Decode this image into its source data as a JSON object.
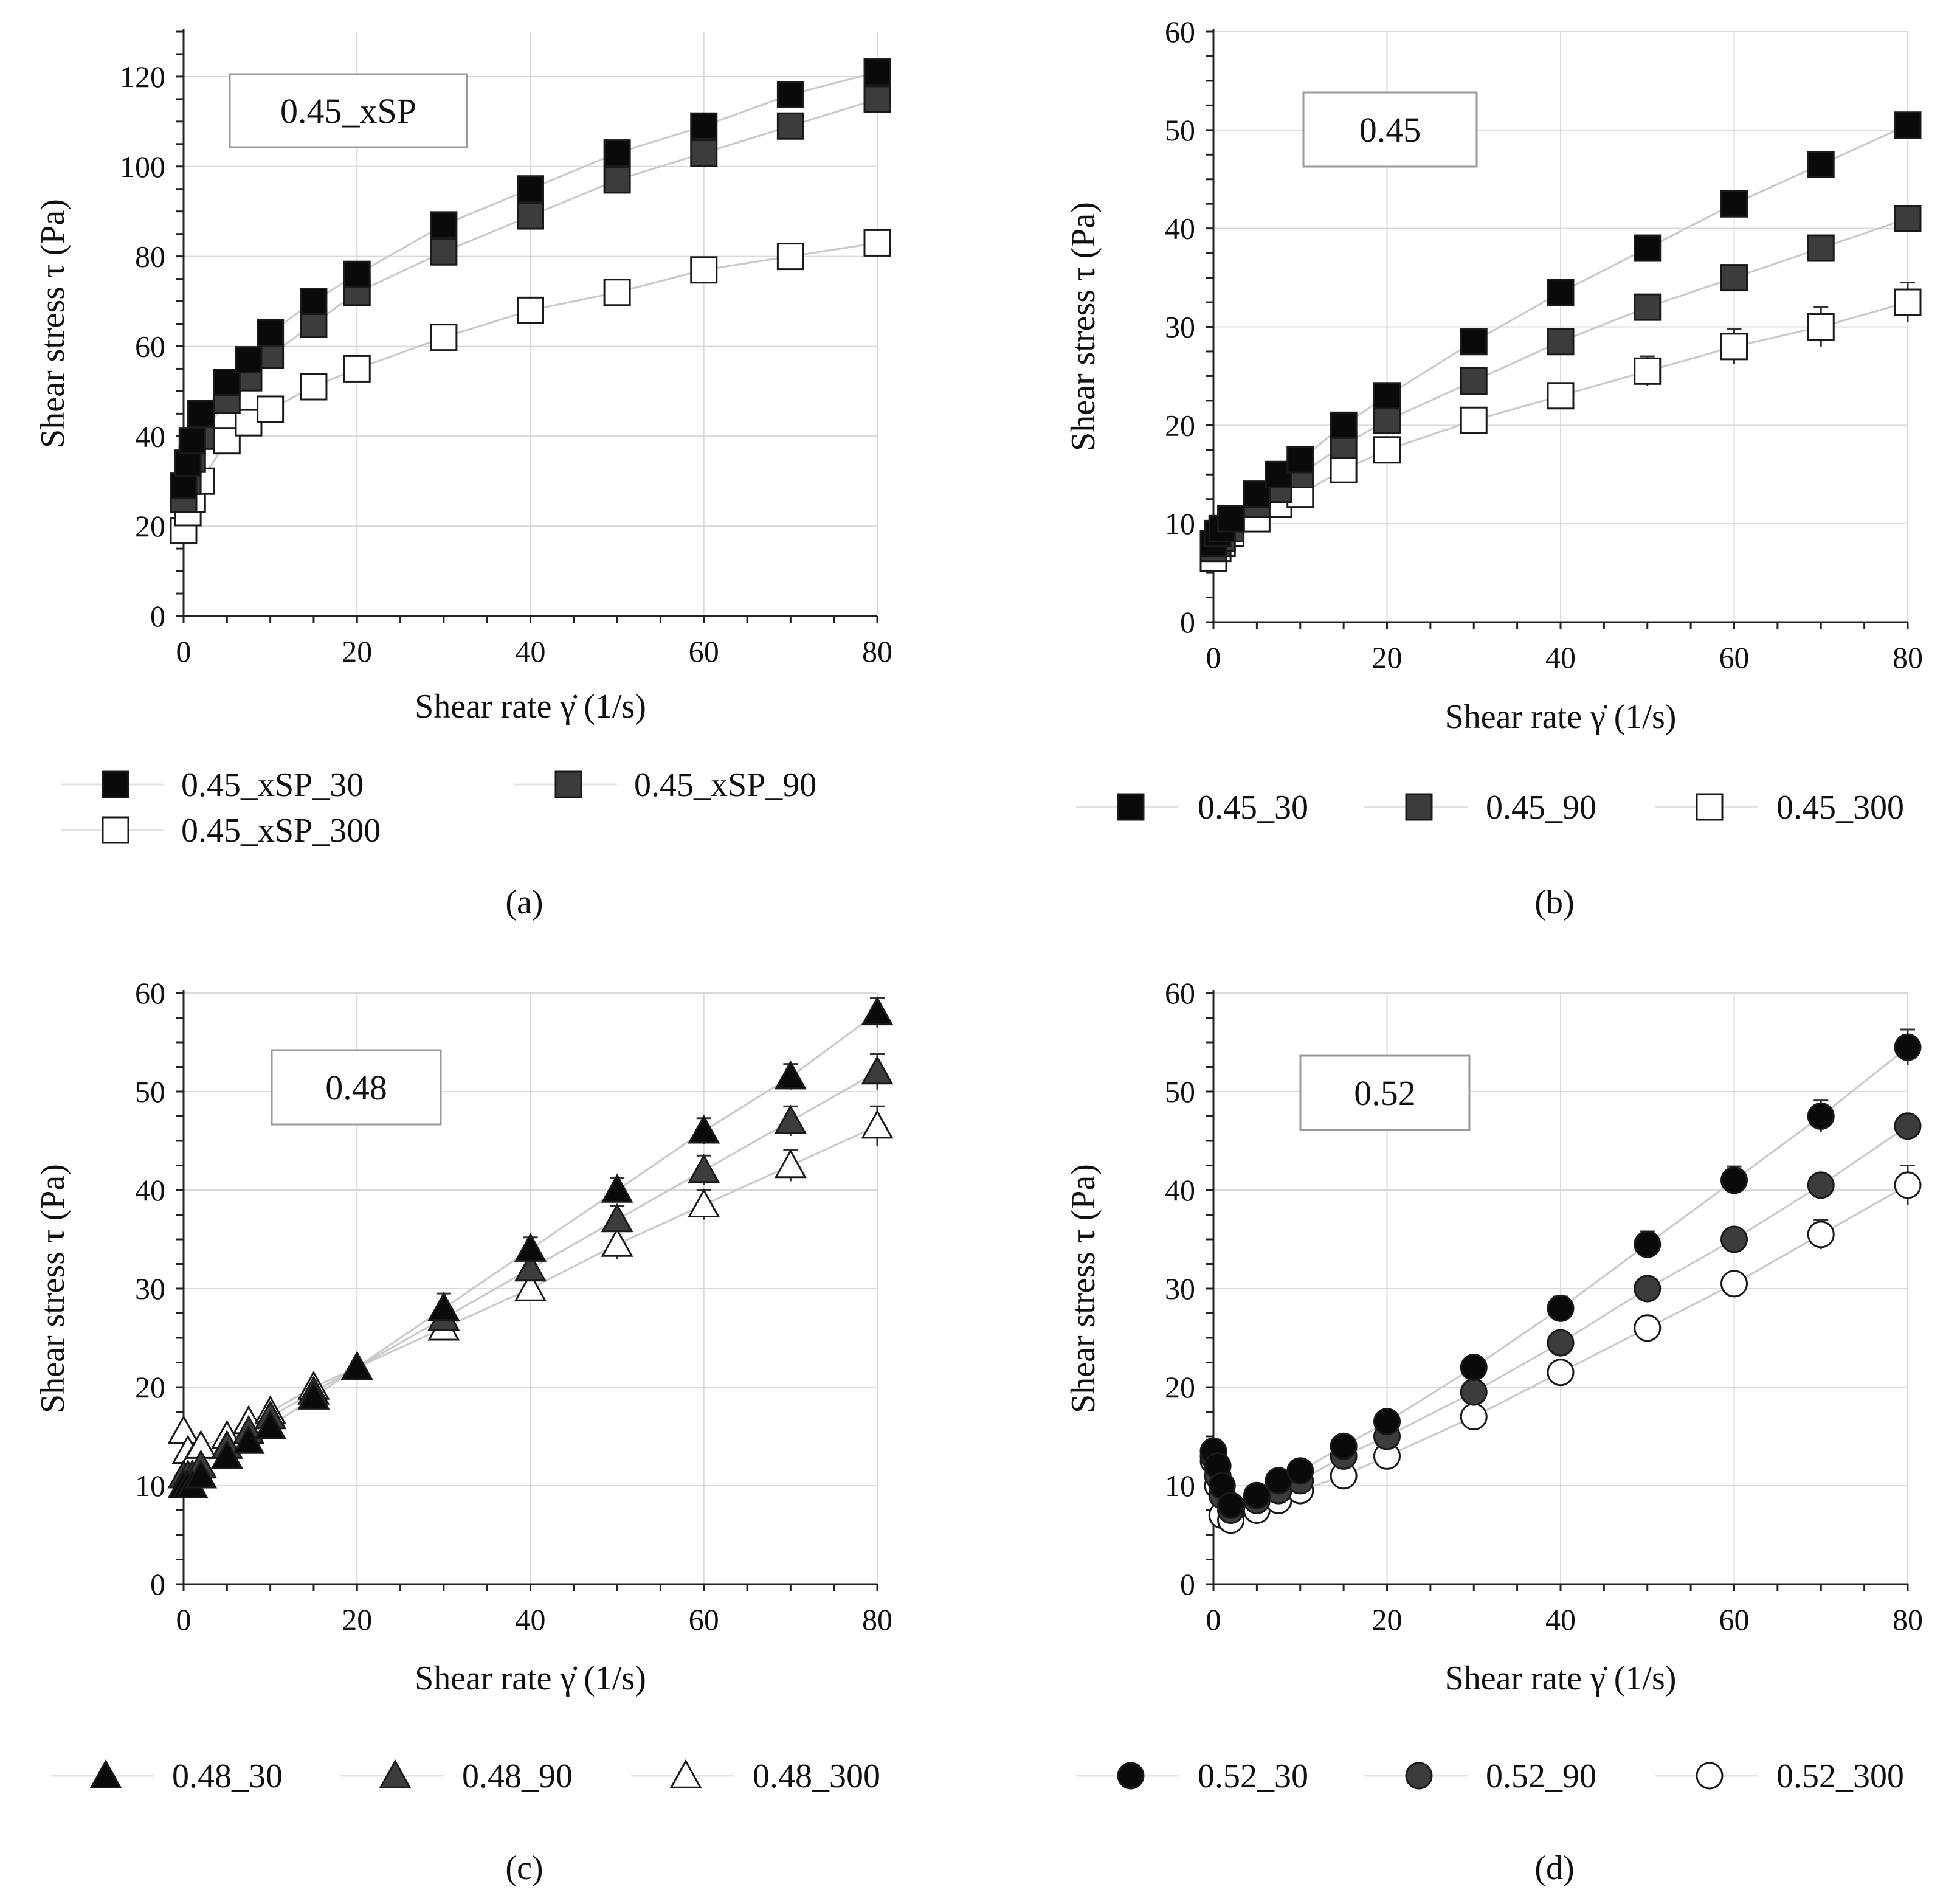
{
  "colors": {
    "black": "#0a0a0a",
    "dark_gray": "#3c3c3c",
    "white": "#ffffff",
    "grid": "#d9d9d9",
    "axis": "#222222",
    "conn": "#c8c8c8"
  },
  "chart_data": [
    {
      "type": "scatter",
      "panel": "a",
      "caption": "(a)",
      "label_box": "0.45_xSP",
      "xlabel": "Shear rate γ̇ (1/s)",
      "ylabel": "Shear stress τ (Pa)",
      "xlim": [
        0,
        80
      ],
      "ylim": [
        0,
        130
      ],
      "xticks": [
        0,
        20,
        40,
        60,
        80
      ],
      "yticks": [
        0,
        20,
        40,
        60,
        80,
        100,
        120
      ],
      "marker": "square",
      "legend_position": "bottom",
      "series": [
        {
          "name": "0.45_xSP_30",
          "fill": "black",
          "x": [
            0,
            0.5,
            1,
            2,
            5,
            7.5,
            10,
            15,
            20,
            30,
            40,
            50,
            60,
            70,
            80
          ],
          "y": [
            29,
            34,
            39,
            45,
            52,
            57,
            63,
            70,
            76,
            87,
            95,
            103,
            109,
            116,
            121
          ]
        },
        {
          "name": "0.45_xSP_90",
          "fill": "dark_gray",
          "x": [
            0,
            0.5,
            1,
            2,
            5,
            7.5,
            10,
            15,
            20,
            30,
            40,
            50,
            60,
            70,
            80
          ],
          "y": [
            26,
            30,
            35,
            40,
            48,
            53,
            58,
            65,
            72,
            81,
            89,
            97,
            103,
            109,
            115
          ]
        },
        {
          "name": "0.45_xSP_300",
          "fill": "white",
          "x": [
            0,
            0.5,
            1,
            2,
            5,
            7.5,
            10,
            15,
            20,
            30,
            40,
            50,
            60,
            70,
            80
          ],
          "y": [
            19,
            23,
            26,
            30,
            39,
            43,
            46,
            51,
            55,
            62,
            68,
            72,
            77,
            80,
            83
          ]
        }
      ]
    },
    {
      "type": "scatter",
      "panel": "b",
      "caption": "(b)",
      "label_box": "0.45",
      "xlabel": "Shear rate γ̇  (1/s)",
      "ylabel": "Shear stress τ (Pa)",
      "xlim": [
        0,
        80
      ],
      "ylim": [
        0,
        60
      ],
      "xticks": [
        0,
        20,
        40,
        60,
        80
      ],
      "yticks": [
        0,
        10,
        20,
        30,
        40,
        50,
        60
      ],
      "marker": "square",
      "legend_position": "bottom",
      "series": [
        {
          "name": "0.45_30",
          "fill": "black",
          "x": [
            0,
            0.5,
            1,
            2,
            5,
            7.5,
            10,
            15,
            20,
            30,
            40,
            50,
            60,
            70,
            80
          ],
          "y": [
            8,
            9,
            9.5,
            10.5,
            13,
            15,
            16.5,
            20,
            23,
            28.5,
            33.5,
            38,
            42.5,
            46.5,
            50.5
          ],
          "err": [
            0.5,
            0.5,
            0.5,
            0.5,
            0.5,
            0.5,
            0.5,
            0.5,
            0.5,
            0.5,
            0.6,
            0.6,
            0.7,
            0.7,
            0.7
          ]
        },
        {
          "name": "0.45_90",
          "fill": "dark_gray",
          "x": [
            0,
            0.5,
            1,
            2,
            5,
            7.5,
            10,
            15,
            20,
            30,
            40,
            50,
            60,
            70,
            80
          ],
          "y": [
            7.5,
            8,
            8.5,
            9.5,
            12,
            13.5,
            15,
            18,
            20.5,
            24.5,
            28.5,
            32,
            35,
            38,
            41
          ],
          "err": [
            0.5,
            0.5,
            0.5,
            0.5,
            0.5,
            0.5,
            0.5,
            0.5,
            0.5,
            0.7,
            0.8,
            0.8,
            0.9,
            0.9,
            0.9
          ]
        },
        {
          "name": "0.45_300",
          "fill": "white",
          "x": [
            0,
            0.5,
            1,
            2,
            5,
            7.5,
            10,
            15,
            20,
            30,
            40,
            50,
            60,
            70,
            80
          ],
          "y": [
            6.5,
            7.5,
            8,
            9,
            10.5,
            12,
            13,
            15.5,
            17.5,
            20.5,
            23,
            25.5,
            28,
            30,
            32.5
          ],
          "err": [
            0.5,
            0.5,
            0.5,
            0.5,
            0.5,
            0.5,
            0.5,
            0.5,
            0.5,
            0.8,
            0.8,
            1.5,
            1.8,
            2,
            2
          ]
        }
      ]
    },
    {
      "type": "scatter",
      "panel": "c",
      "caption": "(c)",
      "label_box": "0.48",
      "xlabel": "Shear rate γ̇ (1/s)",
      "ylabel": "Shear stress τ (Pa)",
      "xlim": [
        0,
        80
      ],
      "ylim": [
        0,
        60
      ],
      "xticks": [
        0,
        20,
        40,
        60,
        80
      ],
      "yticks": [
        0,
        10,
        20,
        30,
        40,
        50,
        60
      ],
      "marker": "triangle",
      "legend_position": "bottom",
      "series": [
        {
          "name": "0.48_30",
          "fill": "black",
          "x": [
            0,
            0.5,
            1,
            2,
            5,
            7.5,
            10,
            15,
            20,
            30,
            40,
            50,
            60,
            70,
            80
          ],
          "y": [
            10,
            10,
            10,
            11,
            13,
            14.5,
            16,
            19,
            22,
            28,
            34,
            40,
            46,
            51.5,
            58
          ],
          "err": [
            0.5,
            0.5,
            0.5,
            0.5,
            0.5,
            0.5,
            0.5,
            0.5,
            0.6,
            1.5,
            1.2,
            1.2,
            1.3,
            1.3,
            1.5
          ]
        },
        {
          "name": "0.48_90",
          "fill": "dark_gray",
          "x": [
            0,
            0.5,
            1,
            2,
            5,
            7.5,
            10,
            15,
            20,
            30,
            40,
            50,
            60,
            70,
            80
          ],
          "y": [
            11,
            11,
            11,
            12,
            14,
            15.5,
            17,
            19.5,
            22,
            27,
            32,
            37,
            42,
            47,
            52
          ],
          "err": [
            0.5,
            0.5,
            0.5,
            0.5,
            0.5,
            0.5,
            0.5,
            0.5,
            0.5,
            1.2,
            1.2,
            1.4,
            1.5,
            1.5,
            1.8
          ]
        },
        {
          "name": "0.48_300",
          "fill": "white",
          "x": [
            0,
            0.5,
            1,
            2,
            5,
            7.5,
            10,
            15,
            20,
            30,
            40,
            50,
            60,
            70,
            80
          ],
          "y": [
            15.5,
            13.5,
            12.5,
            14,
            15,
            16.5,
            17.5,
            20,
            22,
            26,
            30,
            34.5,
            38.5,
            42.5,
            46.5
          ],
          "err": [
            0.5,
            0.5,
            0.5,
            0.5,
            0.5,
            0.5,
            0.5,
            0.5,
            0.5,
            1.2,
            1.2,
            1.5,
            1.5,
            1.6,
            2
          ]
        }
      ]
    },
    {
      "type": "scatter",
      "panel": "d",
      "caption": "(d)",
      "label_box": "0.52",
      "xlabel": "Shear rate γ̇ (1/s)",
      "ylabel": "Shear stress τ (Pa)",
      "xlim": [
        0,
        80
      ],
      "ylim": [
        0,
        60
      ],
      "xticks": [
        0,
        20,
        40,
        60,
        80
      ],
      "yticks": [
        0,
        10,
        20,
        30,
        40,
        50,
        60
      ],
      "marker": "circle",
      "legend_position": "bottom",
      "series": [
        {
          "name": "0.52_30",
          "fill": "black",
          "x": [
            0,
            0.5,
            1,
            2,
            5,
            7.5,
            10,
            15,
            20,
            30,
            40,
            50,
            60,
            70,
            80
          ],
          "y": [
            13.5,
            12,
            10,
            8,
            9,
            10.5,
            11.5,
            14,
            16.5,
            22,
            28,
            34.5,
            41,
            47.5,
            54.5
          ],
          "err": [
            0.5,
            0.5,
            0.5,
            0.5,
            0.5,
            0.5,
            0.5,
            0.5,
            0.5,
            1,
            1.2,
            1.3,
            1.4,
            1.6,
            1.8
          ]
        },
        {
          "name": "0.52_90",
          "fill": "dark_gray",
          "x": [
            0,
            0.5,
            1,
            2,
            5,
            7.5,
            10,
            15,
            20,
            30,
            40,
            50,
            60,
            70,
            80
          ],
          "y": [
            13,
            11,
            9,
            7.5,
            8.5,
            9.5,
            10.5,
            13,
            15,
            19.5,
            24.5,
            30,
            35,
            40.5,
            46.5
          ],
          "err": [
            0.5,
            0.5,
            0.5,
            0.5,
            0.5,
            0.5,
            0.5,
            0.5,
            0.5,
            0.8,
            0.8,
            0.8,
            0.8,
            0.8,
            0.8
          ]
        },
        {
          "name": "0.52_300",
          "fill": "white",
          "x": [
            0,
            0.5,
            1,
            2,
            5,
            7.5,
            10,
            15,
            20,
            30,
            40,
            50,
            60,
            70,
            80
          ],
          "y": [
            12.5,
            10,
            7,
            6.5,
            7.5,
            8.5,
            9.5,
            11,
            13,
            17,
            21.5,
            26,
            30.5,
            35.5,
            40.5
          ],
          "err": [
            0.5,
            0.5,
            0.5,
            0.5,
            0.5,
            0.5,
            0.5,
            0.5,
            0.5,
            0.5,
            0.8,
            0.8,
            1,
            1.5,
            2
          ]
        }
      ]
    }
  ]
}
